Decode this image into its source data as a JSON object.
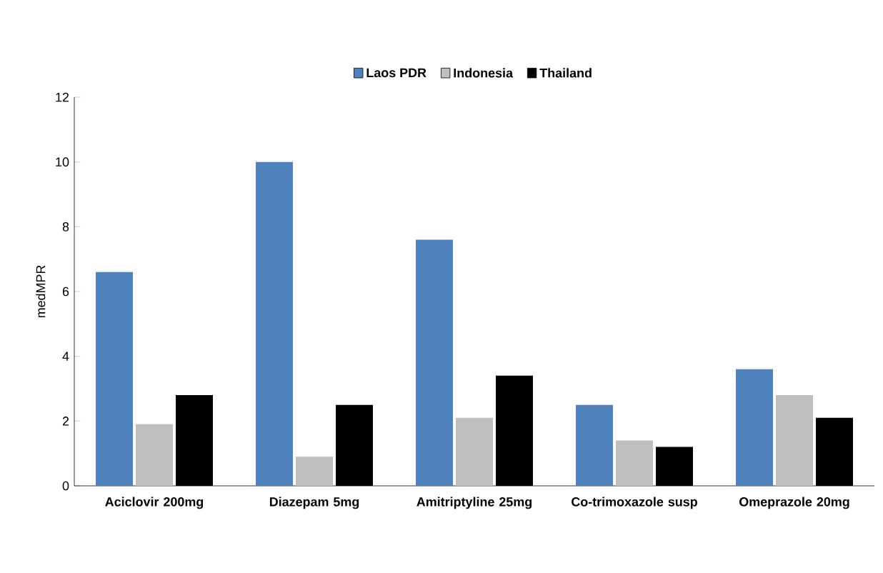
{
  "chart_data": {
    "type": "bar",
    "categories": [
      "Aciclovir 200mg",
      "Diazepam 5mg",
      "Amitriptyline 25mg",
      "Co-trimoxazole susp",
      "Omeprazole 20mg"
    ],
    "ylabel": "medMPR",
    "series": [
      {
        "name": "Laos PDR",
        "color": "#4f81bd",
        "values": [
          6.6,
          10.0,
          7.6,
          2.5,
          3.6
        ]
      },
      {
        "name": "Indonesia",
        "color": "#bfbfbf",
        "values": [
          1.9,
          0.9,
          2.1,
          1.4,
          2.8
        ]
      },
      {
        "name": "Thailand",
        "color": "#000000",
        "values": [
          2.8,
          2.5,
          3.4,
          1.2,
          2.1
        ]
      }
    ],
    "ylim": [
      0,
      12
    ],
    "yticks": [
      0,
      2,
      4,
      6,
      8,
      10,
      12
    ],
    "grid": false,
    "legend": "top"
  }
}
